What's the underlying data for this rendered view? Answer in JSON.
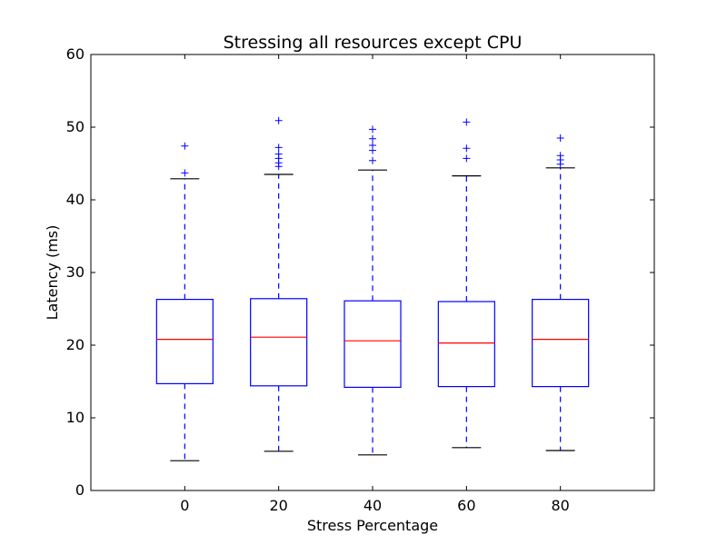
{
  "chart_data": {
    "type": "box",
    "title": "Stressing all resources except CPU",
    "xlabel": "Stress Percentage",
    "ylabel": "Latency (ms)",
    "ylim": [
      0,
      60
    ],
    "yticks": [
      0,
      10,
      20,
      30,
      40,
      50,
      60
    ],
    "categories": [
      "0",
      "20",
      "40",
      "60",
      "80"
    ],
    "grid": false,
    "series": [
      {
        "whisker_low": 4.1,
        "q1": 14.7,
        "median": 20.8,
        "q3": 26.3,
        "whisker_high": 42.9,
        "outliers": [
          43.7,
          47.4
        ]
      },
      {
        "whisker_low": 5.4,
        "q1": 14.4,
        "median": 21.1,
        "q3": 26.4,
        "whisker_high": 43.5,
        "outliers": [
          44.6,
          45.1,
          45.7,
          46.3,
          47.2,
          50.9
        ]
      },
      {
        "whisker_low": 4.9,
        "q1": 14.2,
        "median": 20.6,
        "q3": 26.1,
        "whisker_high": 44.1,
        "outliers": [
          45.4,
          46.8,
          47.5,
          48.4,
          49.7
        ]
      },
      {
        "whisker_low": 5.9,
        "q1": 14.3,
        "median": 20.3,
        "q3": 26.0,
        "whisker_high": 43.3,
        "outliers": [
          45.7,
          47.1,
          50.7
        ]
      },
      {
        "whisker_low": 5.5,
        "q1": 14.3,
        "median": 20.8,
        "q3": 26.3,
        "whisker_high": 44.4,
        "outliers": [
          44.9,
          45.5,
          46.1,
          48.5
        ]
      }
    ],
    "colors": {
      "box": "#0000ff",
      "median": "#ff0000",
      "whisker": "#0000ff",
      "cap": "#000000",
      "outlier": "#0000ff"
    }
  }
}
